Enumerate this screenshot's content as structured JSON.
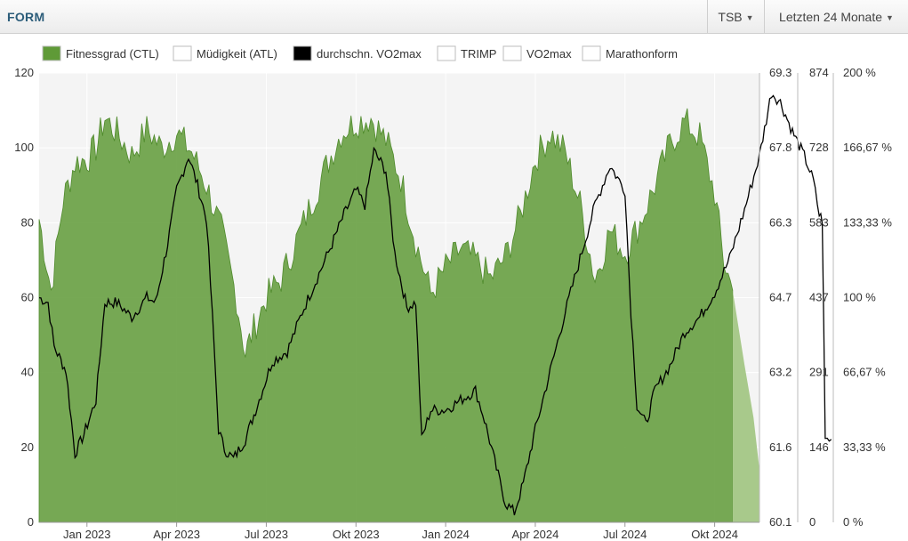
{
  "header": {
    "title": "FORM",
    "metric_select": "TSB",
    "range_select": "Letzten 24 Monate"
  },
  "colors": {
    "fitness": "#5f9a37",
    "fitness_forecast": "#a8c98b",
    "vo2": "#000000",
    "plot_bg": "#f4f4f4",
    "grid": "#ffffff"
  },
  "chart_data": {
    "type": "area",
    "title": "",
    "xlabel": "",
    "ylabel": "",
    "legend": [
      {
        "label": "Fitnessgrad (CTL)",
        "color": "#5f9a37",
        "active": true
      },
      {
        "label": "Müdigkeit (ATL)",
        "color": "#ffffff",
        "active": false
      },
      {
        "label": "durchschn. VO2max",
        "color": "#000000",
        "active": true
      },
      {
        "label": "TRIMP",
        "color": "#ffffff",
        "active": false
      },
      {
        "label": "VO2max",
        "color": "#ffffff",
        "active": false
      },
      {
        "label": "Marathonform",
        "color": "#ffffff",
        "active": false
      }
    ],
    "x_ticks": [
      "Jan 2023",
      "Apr 2023",
      "Jul 2023",
      "Okt 2023",
      "Jan 2024",
      "Apr 2024",
      "Jul 2024",
      "Okt 2024"
    ],
    "y_left": {
      "ticks": [
        "0",
        "20",
        "40",
        "60",
        "80",
        "100",
        "120"
      ],
      "lim": [
        0,
        120
      ]
    },
    "y_right1": {
      "ticks": [
        "60.1",
        "61.6",
        "63.2",
        "64.7",
        "66.3",
        "67.8",
        "69.3"
      ],
      "lim": [
        60.1,
        69.3
      ]
    },
    "y_right2": {
      "ticks": [
        "0",
        "146",
        "291",
        "437",
        "583",
        "728",
        "874"
      ],
      "lim": [
        0,
        874
      ]
    },
    "y_right3": {
      "ticks": [
        "0 %",
        "33,33 %",
        "66,67 %",
        "100 %",
        "133,33 %",
        "166,67 %",
        "200 %"
      ],
      "lim": [
        0,
        200
      ]
    },
    "x_range_months": [
      -1.6,
      22.5
    ],
    "forecast_start_month": 21.6,
    "series": [
      {
        "name": "Fitnessgrad (CTL)",
        "axis": "left",
        "points": [
          [
            -1.6,
            81
          ],
          [
            -1.2,
            62
          ],
          [
            -0.8,
            86
          ],
          [
            -0.4,
            96
          ],
          [
            0.0,
            97
          ],
          [
            0.3,
            100
          ],
          [
            0.6,
            108
          ],
          [
            1.0,
            104
          ],
          [
            1.5,
            98
          ],
          [
            2.0,
            105
          ],
          [
            2.5,
            100
          ],
          [
            3.0,
            104
          ],
          [
            3.5,
            99
          ],
          [
            4.0,
            90
          ],
          [
            4.5,
            78
          ],
          [
            5.0,
            60
          ],
          [
            5.3,
            45
          ],
          [
            5.5,
            50
          ],
          [
            6.0,
            60
          ],
          [
            6.5,
            65
          ],
          [
            7.0,
            75
          ],
          [
            7.5,
            85
          ],
          [
            8.0,
            95
          ],
          [
            8.5,
            104
          ],
          [
            9.0,
            107
          ],
          [
            9.5,
            108
          ],
          [
            10.0,
            102
          ],
          [
            10.5,
            92
          ],
          [
            11.0,
            75
          ],
          [
            11.5,
            61
          ],
          [
            12.0,
            68
          ],
          [
            12.5,
            73
          ],
          [
            13.0,
            70
          ],
          [
            13.5,
            65
          ],
          [
            14.0,
            71
          ],
          [
            14.5,
            82
          ],
          [
            15.0,
            97
          ],
          [
            15.5,
            104
          ],
          [
            16.0,
            99
          ],
          [
            16.5,
            85
          ],
          [
            17.0,
            65
          ],
          [
            17.5,
            78
          ],
          [
            18.0,
            72
          ],
          [
            18.5,
            80
          ],
          [
            19.0,
            90
          ],
          [
            19.5,
            101
          ],
          [
            20.0,
            107
          ],
          [
            20.5,
            103
          ],
          [
            21.0,
            88
          ],
          [
            21.3,
            70
          ],
          [
            21.6,
            62
          ],
          [
            22.0,
            42
          ],
          [
            22.3,
            28
          ],
          [
            22.5,
            14
          ]
        ]
      },
      {
        "name": "durchschn. VO2max",
        "axis": "right1",
        "points": [
          [
            -1.6,
            64.7
          ],
          [
            -1.3,
            64.6
          ],
          [
            -1.1,
            63.7
          ],
          [
            -0.7,
            63.2
          ],
          [
            -0.4,
            61.5
          ],
          [
            -0.1,
            61.9
          ],
          [
            0.3,
            62.6
          ],
          [
            0.6,
            64.6
          ],
          [
            1.0,
            64.6
          ],
          [
            1.5,
            64.3
          ],
          [
            2.0,
            64.7
          ],
          [
            2.3,
            64.6
          ],
          [
            2.7,
            65.8
          ],
          [
            3.0,
            66.9
          ],
          [
            3.4,
            67.6
          ],
          [
            3.7,
            67.0
          ],
          [
            4.0,
            66.3
          ],
          [
            4.2,
            64.3
          ],
          [
            4.4,
            62.0
          ],
          [
            4.6,
            61.6
          ],
          [
            4.9,
            61.4
          ],
          [
            5.3,
            61.8
          ],
          [
            5.7,
            62.5
          ],
          [
            6.2,
            63.4
          ],
          [
            6.7,
            63.6
          ],
          [
            7.2,
            64.4
          ],
          [
            7.7,
            65.1
          ],
          [
            8.2,
            65.8
          ],
          [
            8.6,
            66.4
          ],
          [
            9.0,
            66.9
          ],
          [
            9.3,
            66.6
          ],
          [
            9.6,
            67.7
          ],
          [
            10.0,
            67.3
          ],
          [
            10.3,
            65.6
          ],
          [
            10.7,
            64.5
          ],
          [
            11.0,
            64.6
          ],
          [
            11.2,
            61.8
          ],
          [
            11.5,
            62.4
          ],
          [
            12.0,
            62.4
          ],
          [
            12.5,
            62.6
          ],
          [
            13.0,
            62.8
          ],
          [
            13.3,
            62.2
          ],
          [
            13.7,
            61.2
          ],
          [
            14.0,
            60.5
          ],
          [
            14.3,
            60.3
          ],
          [
            14.6,
            60.9
          ],
          [
            15.0,
            62.0
          ],
          [
            15.5,
            63.2
          ],
          [
            16.0,
            64.4
          ],
          [
            16.5,
            65.5
          ],
          [
            17.0,
            66.6
          ],
          [
            17.5,
            67.4
          ],
          [
            18.0,
            66.9
          ],
          [
            18.2,
            64.4
          ],
          [
            18.4,
            62.5
          ],
          [
            18.7,
            62.1
          ],
          [
            19.0,
            62.8
          ],
          [
            19.5,
            63.3
          ],
          [
            20.0,
            64.0
          ],
          [
            20.5,
            64.3
          ],
          [
            21.0,
            64.8
          ],
          [
            21.5,
            65.5
          ],
          [
            22.0,
            66.5
          ],
          [
            22.5,
            67.6
          ],
          [
            22.9,
            68.9
          ],
          [
            23.2,
            68.7
          ],
          [
            23.6,
            68.1
          ],
          [
            24.0,
            67.6
          ],
          [
            24.3,
            67.1
          ],
          [
            24.5,
            66.4
          ],
          [
            24.6,
            66.3
          ],
          [
            24.7,
            61.8
          ],
          [
            24.9,
            61.8
          ]
        ]
      }
    ]
  }
}
